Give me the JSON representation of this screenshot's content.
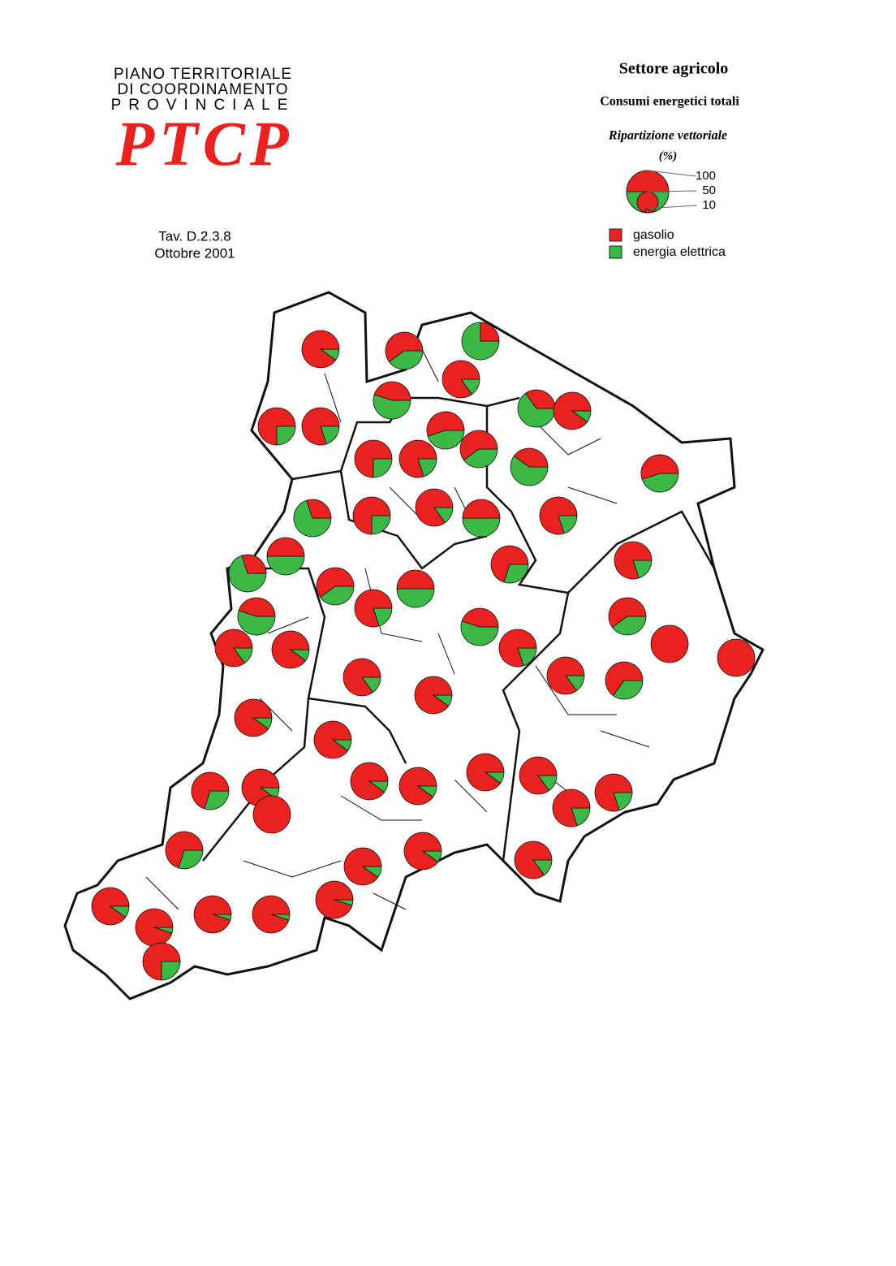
{
  "header": {
    "logo_lines": [
      "PIANO TERRITORIALE",
      "DI COORDINAMENTO",
      "PROVINCIALE"
    ],
    "logo_mark": "PTCP",
    "table_ref": "Tav. D.2.3.8",
    "date": "Ottobre 2001"
  },
  "legend": {
    "title": "Settore agricolo",
    "subtitle": "Consumi energetici totali",
    "caption": "Ripartizione vettoriale",
    "unit": "(%)",
    "sizes": [
      100,
      50,
      10
    ],
    "items": [
      {
        "name": "gasolio",
        "color": "#e8231f"
      },
      {
        "name": "energia elettrica",
        "color": "#3cb846"
      }
    ]
  },
  "map": {
    "pies": [
      {
        "gasolio": 90,
        "energia_elettrica": 10
      },
      {
        "gasolio": 60,
        "energia_elettrica": 40
      },
      {
        "gasolio": 25,
        "energia_elettrica": 75
      },
      {
        "gasolio": 85,
        "energia_elettrica": 15
      },
      {
        "gasolio": 45,
        "energia_elettrica": 55
      },
      {
        "gasolio": 75,
        "energia_elettrica": 25
      },
      {
        "gasolio": 80,
        "energia_elettrica": 20
      },
      {
        "gasolio": 35,
        "energia_elettrica": 65
      },
      {
        "gasolio": 90,
        "energia_elettrica": 10
      },
      {
        "gasolio": 55,
        "energia_elettrica": 45
      },
      {
        "gasolio": 60,
        "energia_elettrica": 40
      },
      {
        "gasolio": 75,
        "energia_elettrica": 25
      },
      {
        "gasolio": 80,
        "energia_elettrica": 20
      },
      {
        "gasolio": 40,
        "energia_elettrica": 60
      },
      {
        "gasolio": 55,
        "energia_elettrica": 45
      },
      {
        "gasolio": 30,
        "energia_elettrica": 70
      },
      {
        "gasolio": 75,
        "energia_elettrica": 25
      },
      {
        "gasolio": 85,
        "energia_elettrica": 15
      },
      {
        "gasolio": 50,
        "energia_elettrica": 50
      },
      {
        "gasolio": 80,
        "energia_elettrica": 20
      },
      {
        "gasolio": 50,
        "energia_elettrica": 50
      },
      {
        "gasolio": 30,
        "energia_elettrica": 70
      },
      {
        "gasolio": 60,
        "energia_elettrica": 40
      },
      {
        "gasolio": 50,
        "energia_elettrica": 50
      },
      {
        "gasolio": 70,
        "energia_elettrica": 30
      },
      {
        "gasolio": 80,
        "energia_elettrica": 20
      },
      {
        "gasolio": 80,
        "energia_elettrica": 20
      },
      {
        "gasolio": 45,
        "energia_elettrica": 55
      },
      {
        "gasolio": 45,
        "energia_elettrica": 55
      },
      {
        "gasolio": 60,
        "energia_elettrica": 40
      },
      {
        "gasolio": 80,
        "energia_elettrica": 20
      },
      {
        "gasolio": 85,
        "energia_elettrica": 15
      },
      {
        "gasolio": 90,
        "energia_elettrica": 10
      },
      {
        "gasolio": 100,
        "energia_elettrica": 0
      },
      {
        "gasolio": 100,
        "energia_elettrica": 0
      },
      {
        "gasolio": 85,
        "energia_elettrica": 15
      },
      {
        "gasolio": 85,
        "energia_elettrica": 15
      },
      {
        "gasolio": 65,
        "energia_elettrica": 35
      },
      {
        "gasolio": 90,
        "energia_elettrica": 10
      },
      {
        "gasolio": 90,
        "energia_elettrica": 10
      },
      {
        "gasolio": 90,
        "energia_elettrica": 10
      },
      {
        "gasolio": 90,
        "energia_elettrica": 10
      },
      {
        "gasolio": 90,
        "energia_elettrica": 10
      },
      {
        "gasolio": 90,
        "energia_elettrica": 10
      },
      {
        "gasolio": 85,
        "energia_elettrica": 15
      },
      {
        "gasolio": 70,
        "energia_elettrica": 30
      },
      {
        "gasolio": 90,
        "energia_elettrica": 10
      },
      {
        "gasolio": 100,
        "energia_elettrica": 0
      },
      {
        "gasolio": 80,
        "energia_elettrica": 20
      },
      {
        "gasolio": 80,
        "energia_elettrica": 20
      },
      {
        "gasolio": 70,
        "energia_elettrica": 30
      },
      {
        "gasolio": 90,
        "energia_elettrica": 10
      },
      {
        "gasolio": 90,
        "energia_elettrica": 10
      },
      {
        "gasolio": 85,
        "energia_elettrica": 15
      },
      {
        "gasolio": 90,
        "energia_elettrica": 10
      },
      {
        "gasolio": 95,
        "energia_elettrica": 5
      },
      {
        "gasolio": 95,
        "energia_elettrica": 5
      },
      {
        "gasolio": 95,
        "energia_elettrica": 5
      },
      {
        "gasolio": 95,
        "energia_elettrica": 5
      },
      {
        "gasolio": 75,
        "energia_elettrica": 25
      }
    ]
  }
}
